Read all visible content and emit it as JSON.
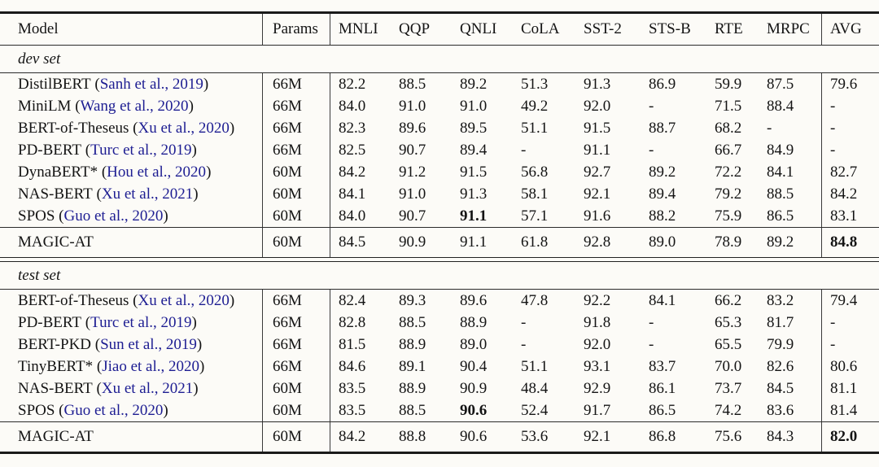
{
  "colors": {
    "background": "#fcfbf7",
    "text": "#141414",
    "citation_blue": "#1d1d92",
    "rule": "#1a1a1a"
  },
  "table": {
    "columns": [
      "Model",
      "Params",
      "MNLI",
      "QQP",
      "QNLI",
      "CoLA",
      "SST-2",
      "STS-B",
      "RTE",
      "MRPC",
      "AVG"
    ],
    "sections": [
      {
        "label": "dev set",
        "rows": [
          {
            "model": "DistilBERT",
            "cite": "Sanh et al., 2019",
            "params": "66M",
            "scores": [
              "82.2",
              "88.5",
              "89.2",
              "51.3",
              "91.3",
              "86.9",
              "59.9",
              "87.5",
              "79.6"
            ],
            "bold": []
          },
          {
            "model": "MiniLM",
            "cite": "Wang et al., 2020",
            "params": "66M",
            "scores": [
              "84.0",
              "91.0",
              "91.0",
              "49.2",
              "92.0",
              "-",
              "71.5",
              "88.4",
              "-"
            ],
            "bold": []
          },
          {
            "model": "BERT-of-Theseus",
            "cite": "Xu et al., 2020",
            "params": "66M",
            "scores": [
              "82.3",
              "89.6",
              "89.5",
              "51.1",
              "91.5",
              "88.7",
              "68.2",
              "-",
              "-"
            ],
            "bold": []
          },
          {
            "model": "PD-BERT",
            "cite": "Turc et al., 2019",
            "params": "66M",
            "scores": [
              "82.5",
              "90.7",
              "89.4",
              "-",
              "91.1",
              "-",
              "66.7",
              "84.9",
              "-"
            ],
            "bold": []
          },
          {
            "model": "DynaBERT*",
            "cite": "Hou et al., 2020",
            "params": "60M",
            "scores": [
              "84.2",
              "91.2",
              "91.5",
              "56.8",
              "92.7",
              "89.2",
              "72.2",
              "84.1",
              "82.7"
            ],
            "bold": []
          },
          {
            "model": "NAS-BERT",
            "cite": "Xu et al., 2021",
            "params": "60M",
            "scores": [
              "84.1",
              "91.0",
              "91.3",
              "58.1",
              "92.1",
              "89.4",
              "79.2",
              "88.5",
              "84.2"
            ],
            "bold": []
          },
          {
            "model": "SPOS",
            "cite": "Guo et al., 2020",
            "params": "60M",
            "scores": [
              "84.0",
              "90.7",
              "91.1",
              "57.1",
              "91.6",
              "88.2",
              "75.9",
              "86.5",
              "83.1"
            ],
            "bold": [
              2
            ]
          }
        ],
        "highlight_row": {
          "model": "MAGIC-AT",
          "cite": null,
          "params": "60M",
          "scores": [
            "84.5",
            "90.9",
            "91.1",
            "61.8",
            "92.8",
            "89.0",
            "78.9",
            "89.2",
            "84.8"
          ],
          "bold": [
            8
          ]
        }
      },
      {
        "label": "test set",
        "rows": [
          {
            "model": "BERT-of-Theseus",
            "cite": "Xu et al., 2020",
            "params": "66M",
            "scores": [
              "82.4",
              "89.3",
              "89.6",
              "47.8",
              "92.2",
              "84.1",
              "66.2",
              "83.2",
              "79.4"
            ],
            "bold": []
          },
          {
            "model": "PD-BERT",
            "cite": "Turc et al., 2019",
            "params": "66M",
            "scores": [
              "82.8",
              "88.5",
              "88.9",
              "-",
              "91.8",
              "-",
              "65.3",
              "81.7",
              "-"
            ],
            "bold": []
          },
          {
            "model": "BERT-PKD",
            "cite": "Sun et al., 2019",
            "params": "66M",
            "scores": [
              "81.5",
              "88.9",
              "89.0",
              "-",
              "92.0",
              "-",
              "65.5",
              "79.9",
              "-"
            ],
            "bold": []
          },
          {
            "model": "TinyBERT*",
            "cite": "Jiao et al., 2020",
            "params": "66M",
            "scores": [
              "84.6",
              "89.1",
              "90.4",
              "51.1",
              "93.1",
              "83.7",
              "70.0",
              "82.6",
              "80.6"
            ],
            "bold": []
          },
          {
            "model": "NAS-BERT",
            "cite": "Xu et al., 2021",
            "params": "60M",
            "scores": [
              "83.5",
              "88.9",
              "90.9",
              "48.4",
              "92.9",
              "86.1",
              "73.7",
              "84.5",
              "81.1"
            ],
            "bold": []
          },
          {
            "model": "SPOS",
            "cite": "Guo et al., 2020",
            "params": "60M",
            "scores": [
              "83.5",
              "88.5",
              "90.6",
              "52.4",
              "91.7",
              "86.5",
              "74.2",
              "83.6",
              "81.4"
            ],
            "bold": [
              2
            ]
          }
        ],
        "highlight_row": {
          "model": "MAGIC-AT",
          "cite": null,
          "params": "60M",
          "scores": [
            "84.2",
            "88.8",
            "90.6",
            "53.6",
            "92.1",
            "86.8",
            "75.6",
            "84.3",
            "82.0"
          ],
          "bold": [
            8
          ]
        }
      }
    ]
  }
}
